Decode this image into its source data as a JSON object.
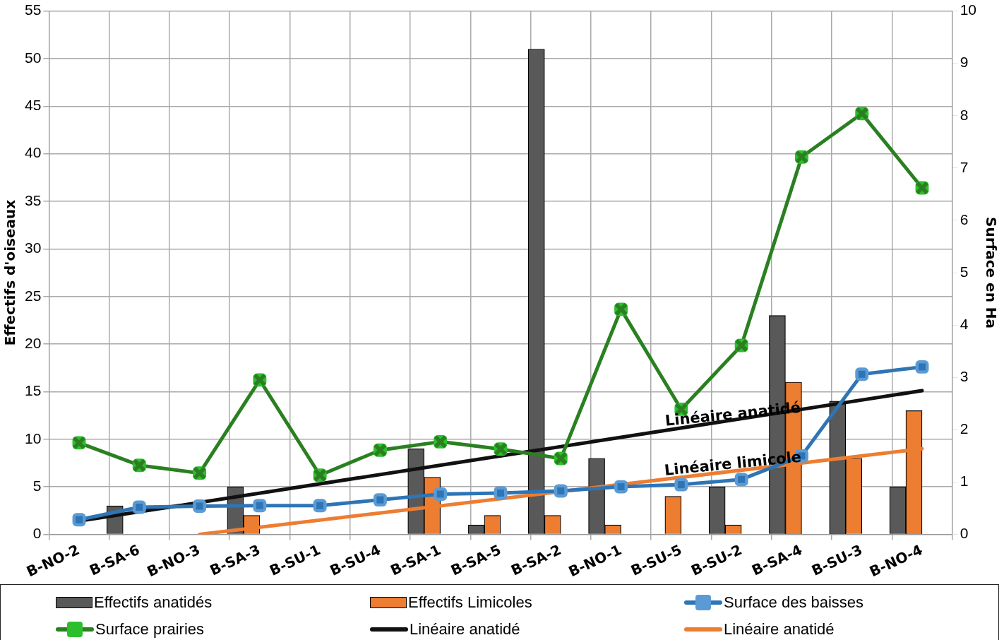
{
  "chart_data": {
    "type": "bar",
    "categories": [
      "B-NO-2",
      "B-SA-6",
      "B-NO-3",
      "B-SA-3",
      "B-SU-1",
      "B-SU-4",
      "B-SA-1",
      "B-SA-5",
      "B-SA-2",
      "B-NO-1",
      "B-SU-5",
      "B-SU-2",
      "B-SA-4",
      "B-SU-3",
      "B-NO-4"
    ],
    "series": [
      {
        "name": "Effectifs anatidés",
        "color": "#595959",
        "values": [
          0,
          3,
          0,
          5,
          0,
          0,
          9,
          1,
          51,
          8,
          0,
          5,
          23,
          14,
          5
        ]
      },
      {
        "name": "Effectifs Limicoles",
        "color": "#ed7d31",
        "values": [
          0,
          null,
          0,
          2,
          0,
          0,
          6,
          2,
          2,
          1,
          4,
          1,
          16,
          8,
          13
        ]
      },
      {
        "name": "Surface des baisses",
        "type": "line",
        "axis": "y2",
        "color": "#2e75b6",
        "marker": "square",
        "values": [
          0.28,
          0.52,
          0.54,
          0.55,
          0.55,
          0.66,
          0.77,
          0.79,
          0.83,
          0.91,
          0.95,
          1.05,
          1.5,
          3.06,
          3.2
        ]
      },
      {
        "name": "Surface prairies",
        "type": "line",
        "axis": "y2",
        "color": "#2a8020",
        "marker": "cross",
        "values": [
          1.75,
          1.32,
          1.17,
          2.95,
          1.13,
          1.61,
          1.77,
          1.63,
          1.45,
          4.3,
          2.39,
          3.61,
          7.21,
          8.04,
          6.62
        ]
      },
      {
        "name": "Linéaire anatidé",
        "type": "line",
        "color": "#111111",
        "x": [
          "B-NO-2",
          "B-NO-4"
        ],
        "values": [
          1.4,
          15.1
        ]
      },
      {
        "name": "Linéaire anatidé",
        "type": "line",
        "color": "#ed7d31",
        "x": [
          "B-NO-3",
          "B-NO-4"
        ],
        "values": [
          0,
          9
        ]
      }
    ],
    "ylabel": "Effectifs d'oiseaux",
    "y2label": "Surface en Ha",
    "ylim": [
      0,
      55
    ],
    "yticks": [
      0,
      5,
      10,
      15,
      20,
      25,
      30,
      35,
      40,
      45,
      50,
      55
    ],
    "y2lim": [
      0,
      10
    ],
    "y2ticks": [
      0,
      1,
      2,
      3,
      4,
      5,
      6,
      7,
      8,
      9,
      10
    ],
    "annotations": [
      {
        "text": "Linéaire anatidé",
        "x": "B-SU-5",
        "y": 11.2
      },
      {
        "text": "Linéaire limicole",
        "x": "B-SU-5",
        "y": 6
      }
    ],
    "grid": true,
    "legend": "bottom"
  }
}
